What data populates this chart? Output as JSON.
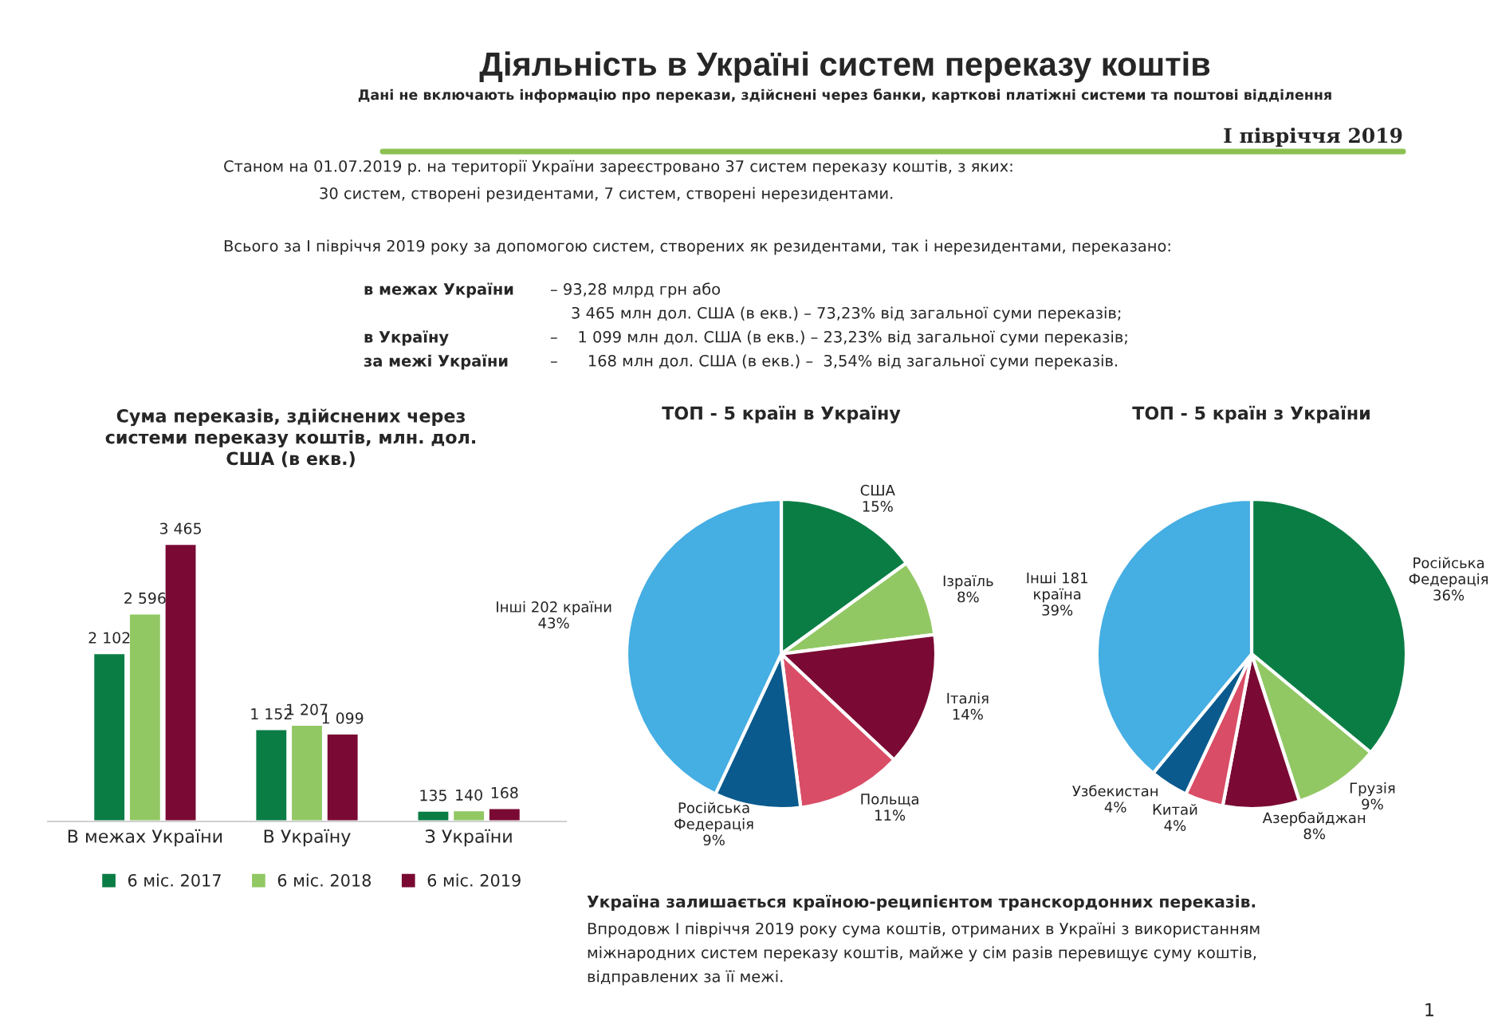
{
  "chart_data": [
    {
      "type": "other",
      "title": "Діяльність в Україні систем переказу коштів",
      "subtitle": "Дані не включають інформацію про перекази, здійснені через банки, карткові платіжні системи та поштові відділення",
      "annotations": [
        "І півріччя 2019",
        "Станом на 01.07.2019 р. на території України зареєстровано 37 систем переказу коштів, з яких:",
        "30 систем, створені резидентами, 7 систем, створені нерезидентами.",
        "Всього за І півріччя 2019 року за допомогою систем, створених як резидентами, так і нерезидентами, переказано:",
        "в межах України",
        "– 93,28 млрд грн або",
        "3 465 млн дол. США (в екв.) – 73,23% від загальної суми переказів;",
        "в Україну",
        "–    1 099 млн дол. США (в екв.) – 23,23% від загальної суми переказів;",
        "за межі України",
        "–      168 млн дол. США (в екв.) –  3,54% від загальної суми переказів."
      ]
    },
    {
      "type": "bar",
      "title": "Сума переказів, здійснених через\nсистеми переказу коштів, млн. дол.\nСША (в екв.)",
      "categories": [
        "В межах України",
        "В Україну",
        "З України"
      ],
      "tick_labels": "x",
      "legend": "bottom",
      "series": [
        {
          "name": "6 міс. 2017",
          "color": "#0a7d45",
          "values": [
            2102,
            1152,
            135
          ],
          "value_labels": [
            "2 102",
            "1 152",
            "135"
          ]
        },
        {
          "name": "6 міс. 2018",
          "color": "#92c864",
          "values": [
            2596,
            1207,
            140
          ],
          "value_labels": [
            "2 596",
            "1 207",
            "140"
          ]
        },
        {
          "name": "6 міс. 2019",
          "color": "#7a0a33",
          "values": [
            3465,
            1099,
            168
          ],
          "value_labels": [
            "3 465",
            "1 099",
            "168"
          ]
        }
      ]
    },
    {
      "type": "pie",
      "title": "ТОП - 5 країн в Україну",
      "categories": [
        "США",
        "Ізраїль",
        "Італія",
        "Польща",
        "Російська\nФедерація",
        "Інші 202 країни"
      ],
      "values": [
        15,
        8,
        14,
        11,
        9,
        43
      ],
      "value_labels": [
        "15%",
        "8%",
        "14%",
        "11%",
        "9%",
        "43%"
      ],
      "colors": [
        "#0a7d45",
        "#92c864",
        "#7a0a33",
        "#d94d66",
        "#0a5a8e",
        "#45aee3"
      ]
    },
    {
      "type": "pie",
      "title": "ТОП - 5 країн з України",
      "categories": [
        "Російська\nФедерація",
        "Грузія",
        "Азербайджан",
        "Китай",
        "Узбекистан",
        "Інші 181\nкраїна"
      ],
      "values": [
        36,
        9,
        8,
        4,
        4,
        39
      ],
      "value_labels": [
        "36%",
        "9%",
        "8%",
        "4%",
        "4%",
        "39%"
      ],
      "colors": [
        "#0a7d45",
        "#92c864",
        "#7a0a33",
        "#d94d66",
        "#0a5a8e",
        "#45aee3"
      ]
    },
    {
      "type": "other",
      "title": "Україна залишається країною-реципієнтом транскордонних переказів.",
      "annotations": [
        "Впродовж І півріччя 2019 року сума коштів, отриманих в Україні з використанням",
        "міжнародних систем переказу коштів, майже у сім разів перевищує суму коштів,",
        "відправлених за її межі.",
        "1"
      ]
    }
  ]
}
